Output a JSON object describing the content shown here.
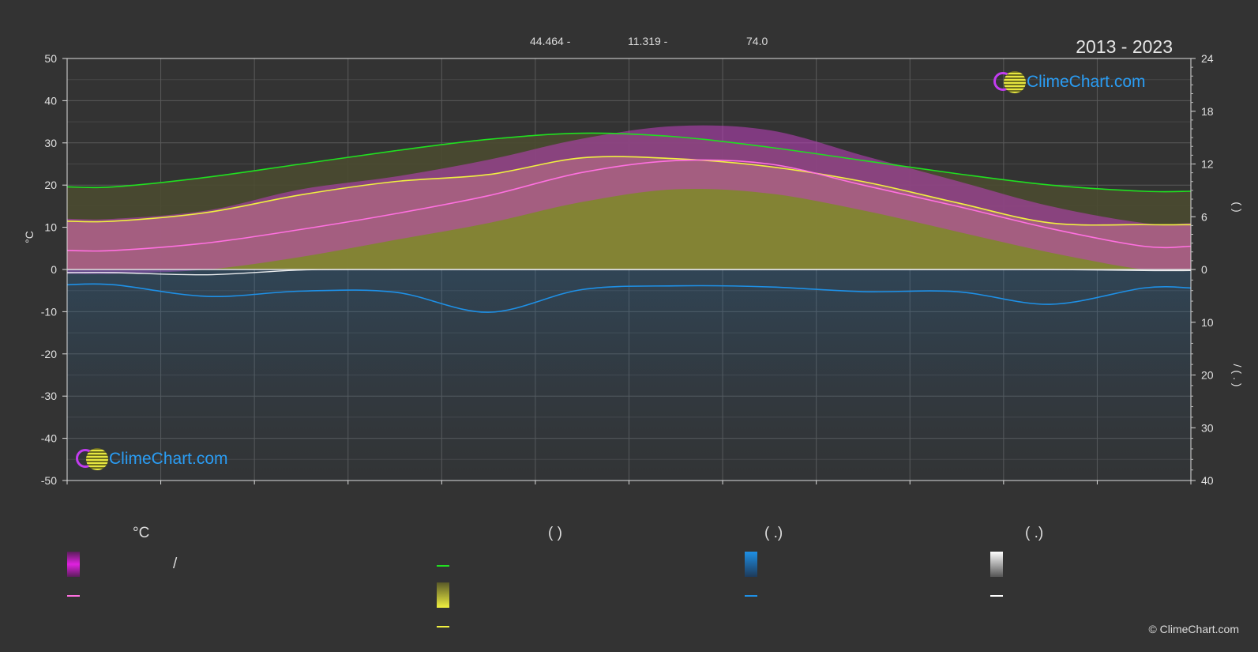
{
  "header": {
    "coord_lat": "44.464 -",
    "coord_lon": "11.319 -",
    "coord_elev": "74.0",
    "years": "2013 - 2023"
  },
  "brand": {
    "name": "ClimeChart.com"
  },
  "footer": {
    "copyright": "© ClimeChart.com"
  },
  "legend": {
    "temp_head": "°C",
    "col2_head": "(          )",
    "col3_head": "(   .)",
    "col4_head": "(   .)",
    "slash": "/",
    "colors": {
      "temp_range": "#e020e0",
      "temp_mean": "#ff70e0",
      "daylight": "#20e020",
      "sunshine": "#e6e640",
      "sunshine_mean": "#f0f040",
      "rain": "#1e90e6",
      "rain_mean": "#1e90e6",
      "snow": "#ffffff",
      "snow_mean": "#ffffff"
    }
  },
  "chart_data": {
    "type": "area",
    "x": [
      0.5,
      1.5,
      2.5,
      3.5,
      4.5,
      5.5,
      6.5,
      7.5,
      8.5,
      9.5,
      10.5,
      11.5
    ],
    "left_axis": {
      "label": "°C",
      "range": [
        -50,
        50
      ],
      "ticks": [
        50,
        40,
        30,
        20,
        10,
        0,
        -10,
        -20,
        -30,
        -40,
        -50
      ]
    },
    "right_axis_hours": {
      "label": "(   )",
      "range": [
        0,
        24
      ],
      "ticks": [
        24,
        18,
        12,
        6,
        0
      ]
    },
    "right_axis_precip": {
      "label": "/ (  .  )",
      "range": [
        0,
        40
      ],
      "ticks": [
        10,
        20,
        30,
        40
      ]
    },
    "grid": true,
    "series": [
      {
        "key": "daylight_hours",
        "axis": "hours",
        "values": [
          9.4,
          10.5,
          12.0,
          13.5,
          14.8,
          15.5,
          15.1,
          13.9,
          12.4,
          10.9,
          9.6,
          8.9
        ]
      },
      {
        "key": "sunshine_hours",
        "axis": "hours",
        "values": [
          5.5,
          6.5,
          8.5,
          10.0,
          10.8,
          12.7,
          12.6,
          11.7,
          10.0,
          7.6,
          5.3,
          5.1
        ]
      },
      {
        "key": "mean_temp",
        "axis": "celsius",
        "values": [
          4.5,
          6.3,
          9.5,
          13.2,
          17.5,
          23.0,
          25.8,
          25.0,
          20.0,
          15.0,
          9.7,
          5.5
        ]
      },
      {
        "key": "mean_rain",
        "axis": "precip",
        "values": [
          2.9,
          5.1,
          4.1,
          4.3,
          8.1,
          3.8,
          3.1,
          3.3,
          4.2,
          4.2,
          6.6,
          3.5
        ]
      },
      {
        "key": "mean_snow",
        "axis": "precip",
        "values": [
          0.6,
          1.0,
          0.1,
          0,
          0,
          0,
          0,
          0,
          0,
          0,
          0,
          0.2
        ]
      }
    ],
    "temp_band": {
      "max": [
        12,
        14,
        19,
        22,
        26,
        31,
        34,
        33,
        27,
        21,
        15,
        11
      ],
      "min": [
        -1,
        0,
        3,
        7,
        11,
        16,
        19,
        18,
        14,
        9,
        4,
        0
      ]
    }
  }
}
